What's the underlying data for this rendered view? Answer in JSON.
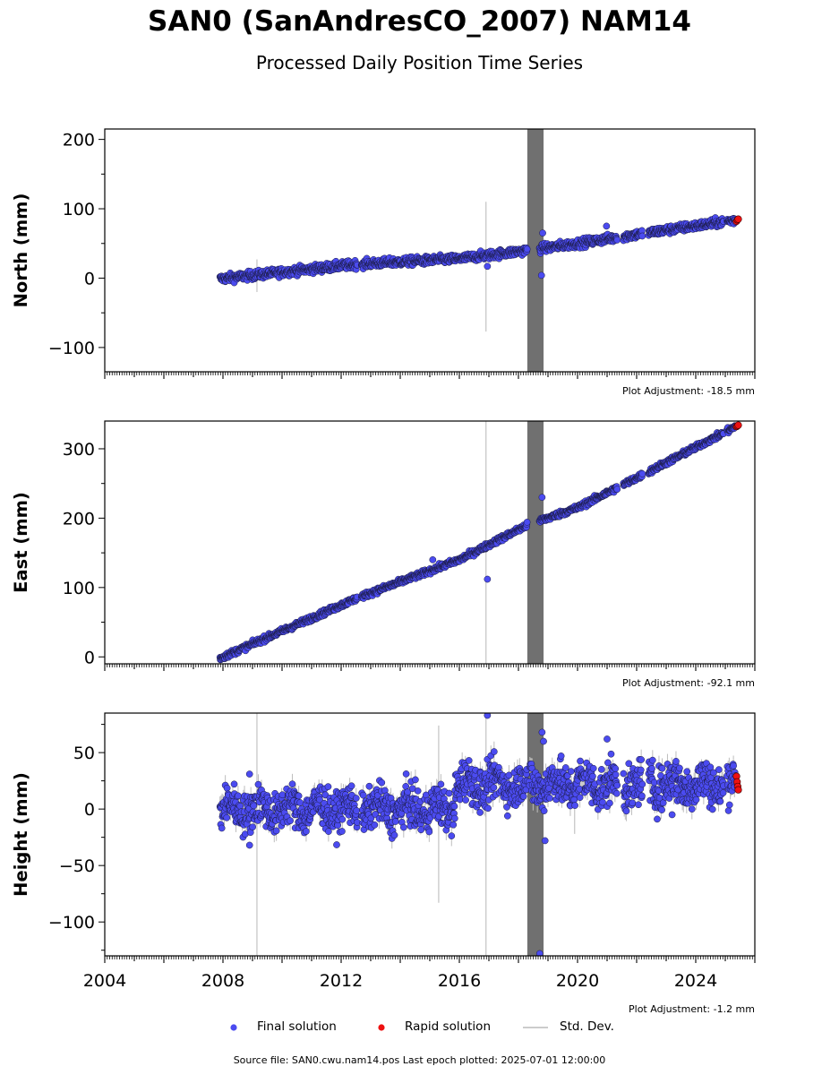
{
  "title": "SAN0 (SanAndresCO_2007) NAM14",
  "subtitle": "Processed Daily Position Time Series",
  "footer": "Source file: SAN0.cwu.nam14.pos  Last epoch plotted: 2025-07-01 12:00:00",
  "legend": {
    "final": "Final solution",
    "rapid": "Rapid solution",
    "std": "Std. Dev."
  },
  "colors": {
    "final": "#4b4bf0",
    "rapid": "#ee1111",
    "std": "#cccccc",
    "gap_band": "#606060"
  },
  "chart_data": [
    {
      "type": "scatter",
      "panel": "north",
      "ylabel": "North (mm)",
      "ylim": [
        -135,
        215
      ],
      "yticks": [
        -100,
        0,
        100,
        200
      ],
      "xlim": [
        2004,
        2026
      ],
      "adjustment": "Plot Adjustment: -18.5 mm",
      "trend": [
        [
          2007.9,
          -1
        ],
        [
          2012.5,
          20
        ],
        [
          2016.0,
          28
        ],
        [
          2018.3,
          40
        ],
        [
          2020.0,
          50
        ],
        [
          2022.0,
          63
        ],
        [
          2025.4,
          84
        ]
      ],
      "final_scatter": 3,
      "outliers": [
        [
          2016.95,
          17
        ],
        [
          2018.78,
          4
        ],
        [
          2018.82,
          65
        ],
        [
          2020.98,
          75
        ]
      ],
      "rapid": [
        [
          2025.38,
          82
        ],
        [
          2025.41,
          84
        ],
        [
          2025.44,
          85
        ]
      ],
      "std_bars": [
        [
          2009.15,
          -20,
          27
        ],
        [
          2016.9,
          -77,
          110
        ]
      ]
    },
    {
      "type": "scatter",
      "panel": "east",
      "ylabel": "East (mm)",
      "ylim": [
        -10,
        340
      ],
      "yticks": [
        0,
        100,
        200,
        300
      ],
      "xlim": [
        2004,
        2026
      ],
      "adjustment": "Plot Adjustment: -92.1 mm",
      "trend": [
        [
          2007.9,
          -2
        ],
        [
          2012.5,
          84
        ],
        [
          2016.0,
          140
        ],
        [
          2018.3,
          190
        ],
        [
          2020.0,
          215
        ],
        [
          2022.0,
          258
        ],
        [
          2025.4,
          333
        ]
      ],
      "final_scatter": 2,
      "outliers": [
        [
          2016.95,
          112
        ],
        [
          2018.8,
          230
        ],
        [
          2015.1,
          140
        ]
      ],
      "rapid": [
        [
          2025.38,
          332
        ],
        [
          2025.41,
          333
        ],
        [
          2025.44,
          334
        ]
      ],
      "std_bars": [
        [
          2016.9,
          -10,
          340
        ]
      ]
    },
    {
      "type": "scatter",
      "panel": "height",
      "ylabel": "Height (mm)",
      "ylim": [
        -130,
        85
      ],
      "yticks": [
        -100,
        -50,
        0,
        50
      ],
      "xlim": [
        2004,
        2026
      ],
      "xticks": [
        2004,
        2008,
        2012,
        2016,
        2020,
        2024
      ],
      "adjustment": "Plot Adjustment: -1.2 mm",
      "segments": [
        {
          "x": [
            2007.9,
            2015.85
          ],
          "mean": 0,
          "spread": 9
        },
        {
          "x": [
            2015.85,
            2018.3
          ],
          "mean": 22,
          "spread": 9
        },
        {
          "x": [
            2018.3,
            2025.4
          ],
          "mean": 22,
          "spread": 10
        }
      ],
      "outliers": [
        [
          2016.95,
          83
        ],
        [
          2018.8,
          68
        ],
        [
          2018.85,
          60
        ],
        [
          2018.9,
          -28
        ],
        [
          2018.72,
          -128
        ],
        [
          2008.9,
          -32
        ],
        [
          2008.9,
          31
        ],
        [
          2021.0,
          62
        ],
        [
          2023.2,
          -5
        ],
        [
          2016.7,
          -3
        ]
      ],
      "rapid": [
        [
          2025.38,
          29
        ],
        [
          2025.4,
          24
        ],
        [
          2025.42,
          20
        ],
        [
          2025.44,
          17
        ]
      ],
      "std_bars": [
        [
          2009.15,
          -130,
          85
        ],
        [
          2015.3,
          -83,
          74
        ],
        [
          2016.9,
          -130,
          85
        ],
        [
          2019.9,
          -22,
          35
        ]
      ]
    }
  ]
}
